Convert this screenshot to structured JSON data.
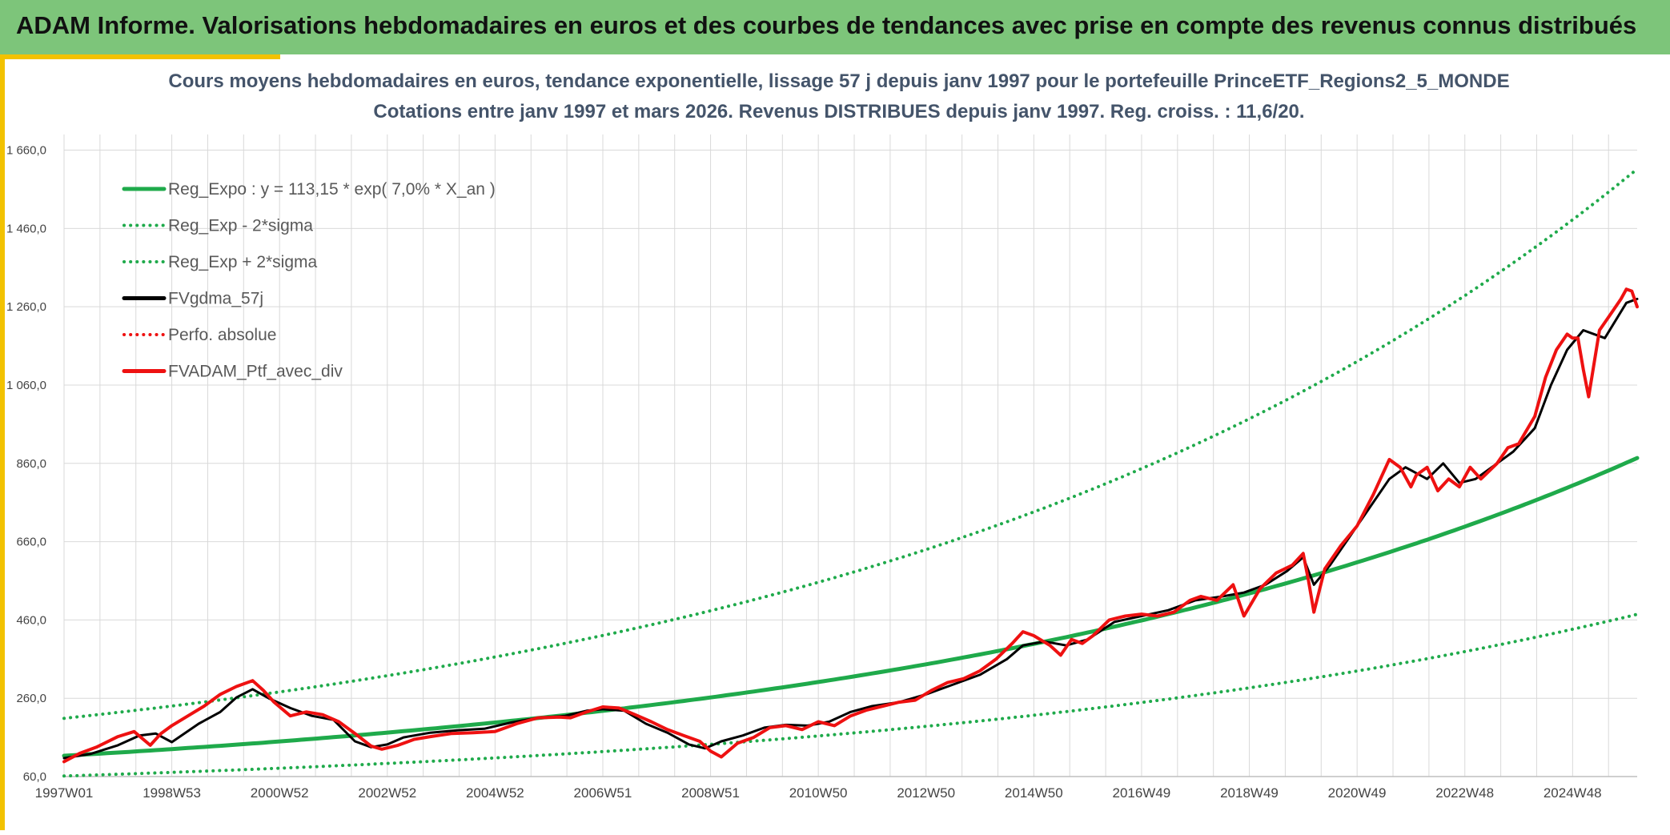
{
  "header": {
    "title": "ADAM Informe. Valorisations hebdomadaires en euros et des courbes de tendances avec prise en compte des revenus connus distribués"
  },
  "colors": {
    "banner": "#7dc57a",
    "accent_yellow": "#f2c200",
    "trend_green": "#1faa4b",
    "smooth_black": "#000000",
    "series_red": "#ee1111",
    "grid": "#d9d9d9"
  },
  "chart_data": {
    "type": "line",
    "title": "Cours moyens hebdomadaires en euros, tendance exponentielle, lissage 57 j depuis janv 1997 pour le portefeuille PrinceETF_Regions2_5_MONDE",
    "subtitle": "Cotations entre janv 1997 et mars 2026. Revenus DISTRIBUES depuis janv 1997. Reg. croiss. : 11,6/20.",
    "xlabel": "",
    "ylabel": "",
    "ylim": [
      60,
      1700
    ],
    "xlim": [
      1997.0,
      2026.2
    ],
    "grid": true,
    "legend_position": "top-left",
    "y_ticks": [
      60,
      260,
      460,
      660,
      860,
      1060,
      1260,
      1460,
      1660
    ],
    "y_tick_labels": [
      "60,0",
      "260,0",
      "460,0",
      "660,0",
      "860,0",
      "1 060,0",
      "1 260,0",
      "1 460,0",
      "1 660,0"
    ],
    "x_ticks": [
      1997.0,
      1999.0,
      2001.0,
      2003.0,
      2005.0,
      2007.0,
      2009.0,
      2011.0,
      2013.0,
      2015.0,
      2017.0,
      2019.0,
      2021.0,
      2023.0,
      2025.0
    ],
    "x_tick_labels": [
      "1997W01",
      "1998W53",
      "2000W52",
      "2002W52",
      "2004W52",
      "2006W51",
      "2008W51",
      "2010W50",
      "2012W50",
      "2014W50",
      "2016W49",
      "2018W49",
      "2020W49",
      "2022W48",
      "2024W48"
    ],
    "regression": {
      "name": "Reg_Expo : y = 113,15 * exp( 7,0% *  X_an )",
      "a": 113.15,
      "rate": 0.07,
      "x0": 1997.0,
      "x1": 2026.2,
      "band_factor_low": 0.543,
      "band_factor_high": 1.845
    },
    "series": [
      {
        "name": "Reg_Expo : y = 113,15 * exp( 7,0% *  X_an )",
        "style": "solid-thick",
        "color": "#1faa4b",
        "source": "regression"
      },
      {
        "name": "Reg_Exp - 2*sigma",
        "style": "dotted",
        "color": "#1faa4b",
        "source": "regression_low"
      },
      {
        "name": "Reg_Exp + 2*sigma",
        "style": "dotted",
        "color": "#1faa4b",
        "source": "regression_high"
      },
      {
        "name": "FVgdma_57j",
        "style": "solid",
        "color": "#000000",
        "x": [
          1997.0,
          1997.5,
          1998.0,
          1998.4,
          1998.7,
          1999.0,
          1999.5,
          1999.9,
          2000.2,
          2000.5,
          2000.8,
          2001.2,
          2001.6,
          2002.0,
          2002.4,
          2002.7,
          2003.0,
          2003.3,
          2003.8,
          2004.3,
          2004.8,
          2005.3,
          2005.8,
          2006.3,
          2006.7,
          2007.0,
          2007.4,
          2007.8,
          2008.2,
          2008.6,
          2008.9,
          2009.2,
          2009.6,
          2010.0,
          2010.4,
          2010.8,
          2011.2,
          2011.6,
          2012.0,
          2012.5,
          2013.0,
          2013.5,
          2014.0,
          2014.5,
          2014.8,
          2015.2,
          2015.6,
          2016.0,
          2016.5,
          2017.0,
          2017.5,
          2018.0,
          2018.5,
          2018.9,
          2019.3,
          2019.7,
          2020.0,
          2020.2,
          2020.5,
          2020.8,
          2021.2,
          2021.6,
          2021.9,
          2022.3,
          2022.6,
          2022.9,
          2023.2,
          2023.6,
          2023.9,
          2024.3,
          2024.6,
          2024.9,
          2025.2,
          2025.6,
          2026.0,
          2026.2
        ],
        "y": [
          107,
          118,
          140,
          165,
          170,
          148,
          195,
          225,
          262,
          283,
          260,
          235,
          215,
          205,
          150,
          135,
          142,
          160,
          172,
          178,
          182,
          198,
          210,
          215,
          228,
          232,
          228,
          195,
          172,
          142,
          132,
          150,
          165,
          185,
          192,
          190,
          200,
          225,
          240,
          250,
          270,
          295,
          320,
          360,
          395,
          405,
          395,
          410,
          455,
          470,
          485,
          510,
          520,
          530,
          550,
          585,
          620,
          550,
          600,
          660,
          740,
          820,
          850,
          820,
          860,
          810,
          820,
          860,
          890,
          950,
          1060,
          1150,
          1200,
          1180,
          1270,
          1280
        ]
      },
      {
        "name": "Perfo. absolue",
        "style": "dotted",
        "color": "#ee1111",
        "visible": false
      },
      {
        "name": "FVADAM_Ptf_avec_div",
        "style": "solid-thick",
        "color": "#ee1111",
        "x": [
          1997.0,
          1997.3,
          1997.6,
          1998.0,
          1998.3,
          1998.6,
          1998.8,
          1999.0,
          1999.3,
          1999.6,
          1999.9,
          2000.2,
          2000.5,
          2000.7,
          2000.9,
          2001.2,
          2001.5,
          2001.8,
          2002.1,
          2002.4,
          2002.7,
          2002.9,
          2003.2,
          2003.5,
          2003.8,
          2004.2,
          2004.6,
          2005.0,
          2005.4,
          2005.8,
          2006.2,
          2006.4,
          2006.7,
          2007.0,
          2007.3,
          2007.6,
          2007.9,
          2008.2,
          2008.5,
          2008.8,
          2009.0,
          2009.2,
          2009.5,
          2009.8,
          2010.1,
          2010.4,
          2010.7,
          2011.0,
          2011.3,
          2011.6,
          2011.9,
          2012.2,
          2012.5,
          2012.8,
          2013.1,
          2013.4,
          2013.7,
          2014.0,
          2014.3,
          2014.6,
          2014.8,
          2015.0,
          2015.3,
          2015.5,
          2015.7,
          2015.9,
          2016.1,
          2016.4,
          2016.7,
          2017.0,
          2017.3,
          2017.6,
          2017.9,
          2018.1,
          2018.4,
          2018.7,
          2018.9,
          2019.2,
          2019.5,
          2019.8,
          2020.0,
          2020.1,
          2020.2,
          2020.4,
          2020.7,
          2021.0,
          2021.3,
          2021.6,
          2021.8,
          2022.0,
          2022.1,
          2022.3,
          2022.5,
          2022.7,
          2022.9,
          2023.1,
          2023.3,
          2023.6,
          2023.8,
          2024.0,
          2024.3,
          2024.5,
          2024.7,
          2024.9,
          2025.0,
          2025.1,
          2025.2,
          2025.3,
          2025.5,
          2025.7,
          2025.9,
          2026.0,
          2026.1,
          2026.2
        ],
        "y": [
          98,
          120,
          135,
          162,
          175,
          140,
          170,
          190,
          215,
          240,
          270,
          290,
          305,
          280,
          250,
          215,
          225,
          218,
          200,
          170,
          138,
          130,
          140,
          155,
          162,
          170,
          172,
          175,
          195,
          210,
          212,
          210,
          225,
          238,
          235,
          218,
          200,
          180,
          165,
          150,
          125,
          110,
          145,
          160,
          185,
          190,
          180,
          200,
          190,
          215,
          230,
          240,
          250,
          255,
          280,
          300,
          310,
          330,
          360,
          400,
          430,
          420,
          395,
          370,
          410,
          400,
          420,
          460,
          470,
          475,
          470,
          480,
          510,
          520,
          510,
          550,
          470,
          540,
          580,
          600,
          630,
          560,
          480,
          590,
          650,
          700,
          780,
          870,
          850,
          800,
          830,
          850,
          790,
          820,
          800,
          850,
          820,
          860,
          900,
          910,
          980,
          1080,
          1150,
          1190,
          1180,
          1180,
          1100,
          1030,
          1200,
          1240,
          1280,
          1305,
          1300,
          1260
        ]
      }
    ]
  }
}
